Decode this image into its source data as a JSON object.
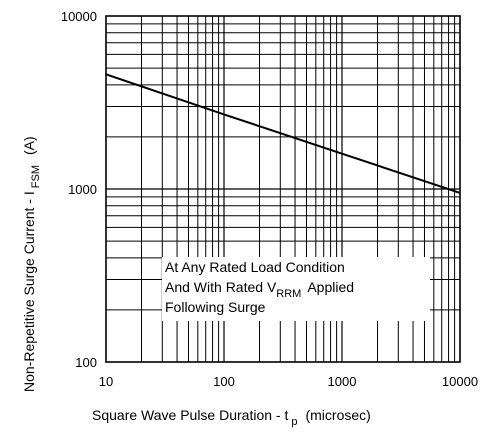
{
  "chart_data": {
    "type": "line",
    "title": "",
    "xlabel": {
      "main": "Square Wave Pulse Duration - t",
      "subscript": "p",
      "unit": "(microsec)"
    },
    "ylabel": {
      "main": "Non-Repetitive Surge Current - I",
      "subscript": "FSM",
      "unit": "(A)"
    },
    "x_scale": "log",
    "y_scale": "log",
    "xlim": [
      10,
      10000
    ],
    "ylim": [
      100,
      10000
    ],
    "x_ticks": [
      "10",
      "100",
      "1000",
      "10000"
    ],
    "y_ticks": [
      "100",
      "1000",
      "10000"
    ],
    "grid": true,
    "series": [
      {
        "x": [
          10,
          100,
          1000,
          10000
        ],
        "y": [
          4600,
          2700,
          1600,
          950
        ]
      }
    ],
    "annotation": {
      "line1": "At Any Rated Load Condition",
      "line2_main": "And With Rated V",
      "line2_sub": "RRM",
      "line2_tail": "Applied",
      "line3": "Following Surge"
    }
  }
}
